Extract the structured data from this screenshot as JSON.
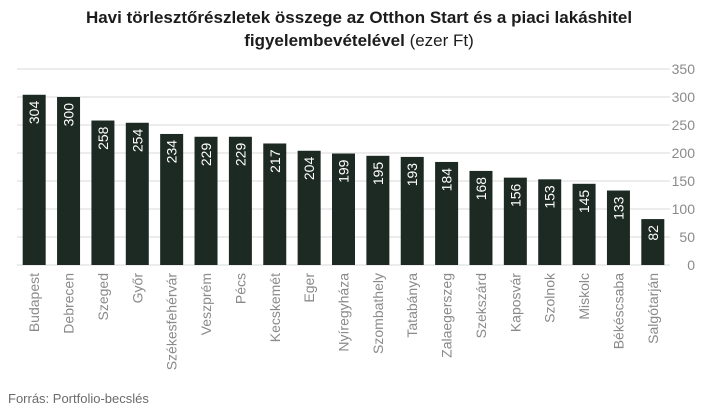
{
  "title_bold_line1": "Havi törlesztőrészletek összege az Otthon Start és a piaci lakáshitel",
  "title_bold_line2": "figyelembevételével",
  "title_unit": " (ezer Ft)",
  "source": "Forrás: Portfolio-becslés",
  "colors": {
    "bar": "#1d2a24",
    "grid": "#d9d9d9",
    "axis_text": "#8a8a8a",
    "label": "#ffffff"
  },
  "chart_data": {
    "type": "bar",
    "categories": [
      "Budapest",
      "Debrecen",
      "Szeged",
      "Győr",
      "Székesfehérvár",
      "Veszprém",
      "Pécs",
      "Kecskemét",
      "Eger",
      "Nyíregyháza",
      "Szombathely",
      "Tatabánya",
      "Zalaegerszeg",
      "Szekszárd",
      "Kaposvár",
      "Szolnok",
      "Miskolc",
      "Békéscsaba",
      "Salgótarján"
    ],
    "values": [
      304,
      300,
      258,
      254,
      234,
      229,
      229,
      217,
      204,
      199,
      195,
      193,
      184,
      168,
      156,
      153,
      145,
      133,
      82
    ],
    "ylim": [
      0,
      350
    ],
    "yticks": [
      0,
      50,
      100,
      150,
      200,
      250,
      300,
      350
    ],
    "grid": true,
    "y_axis_position": "right",
    "data_labels": "inside-top-rotated"
  }
}
